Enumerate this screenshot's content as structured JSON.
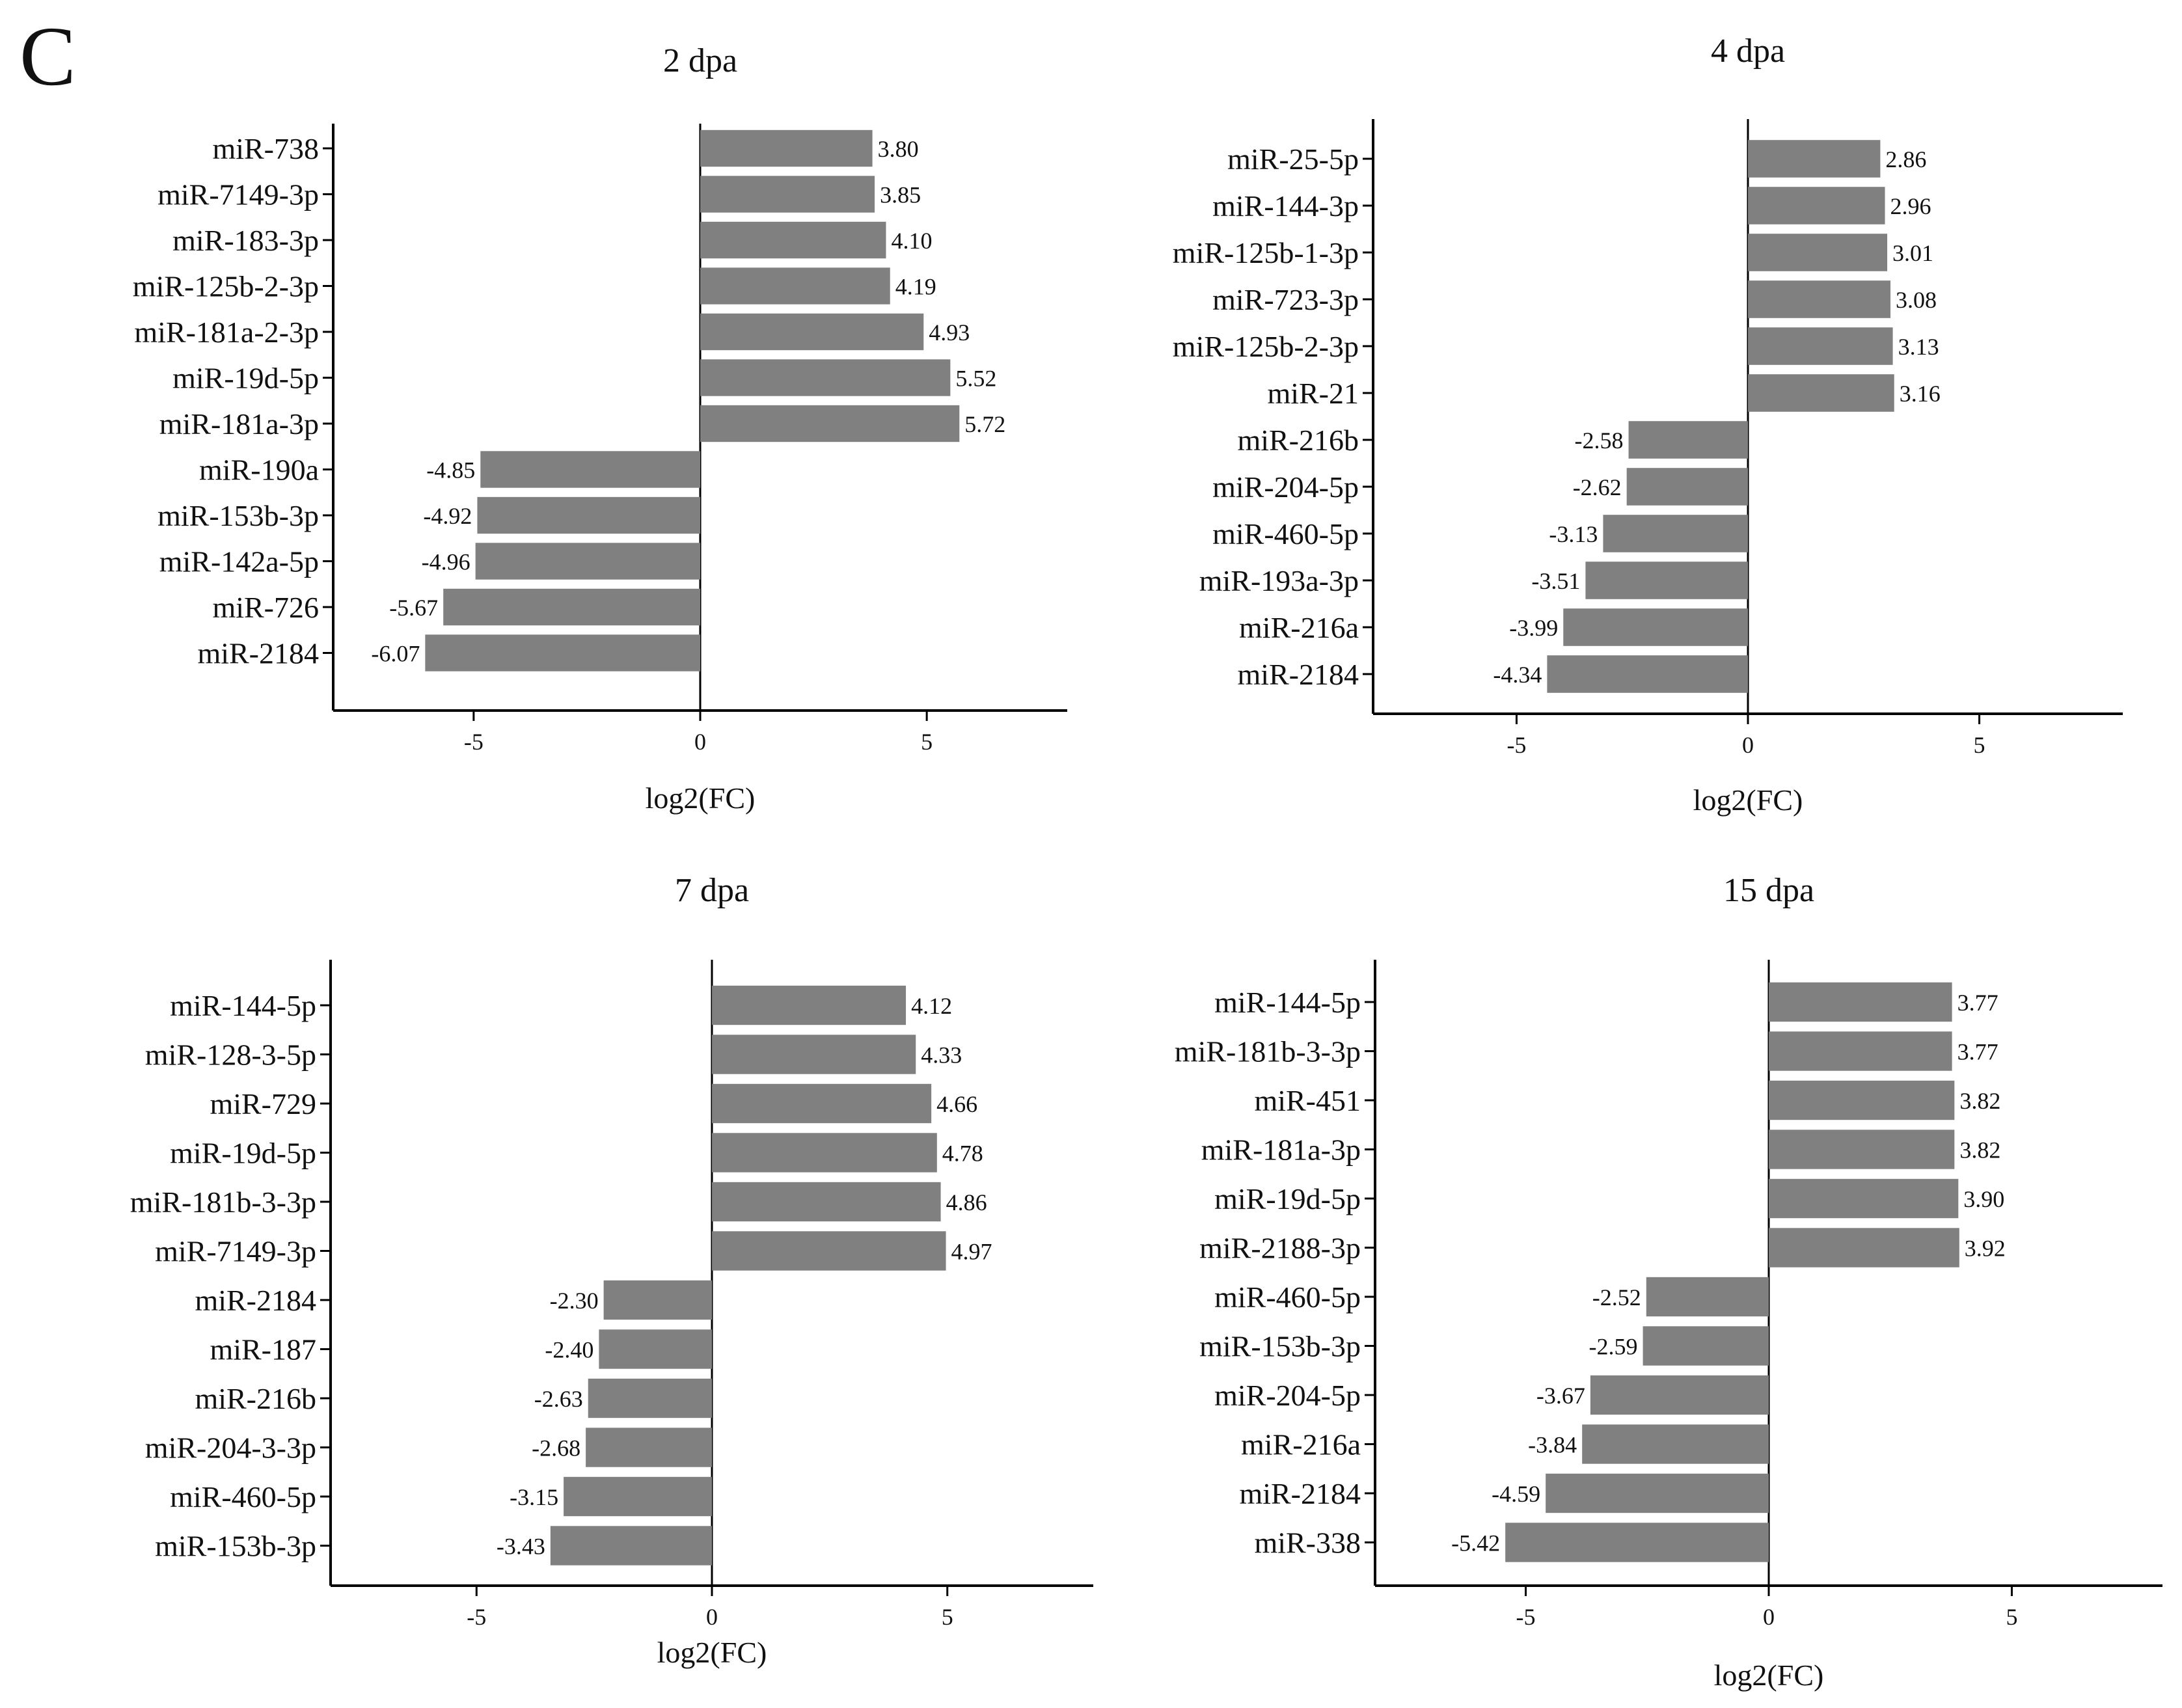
{
  "figure": {
    "panel_label": "C"
  },
  "style": {
    "bar_color": "#808080",
    "axis_color": "#000000",
    "text_color": "#111111"
  },
  "chart_data": [
    {
      "type": "bar",
      "orientation": "horizontal",
      "title": "2 dpa",
      "xlabel": "log2(FC)",
      "ylabel": "",
      "xlim": [
        -8.1,
        8.1
      ],
      "xticks": [
        -5,
        0,
        5
      ],
      "xtick_labels": [
        "-5",
        "0",
        "5"
      ],
      "categories": [
        "miR-738",
        "miR-7149-3p",
        "miR-183-3p",
        "miR-125b-2-3p",
        "miR-181a-2-3p",
        "miR-19d-5p",
        "miR-181a-3p",
        "miR-190a",
        "miR-153b-3p",
        "miR-142a-5p",
        "miR-726",
        "miR-2184"
      ],
      "values": [
        3.8,
        3.85,
        4.1,
        4.19,
        4.93,
        5.52,
        5.72,
        -4.85,
        -4.92,
        -4.96,
        -5.67,
        -6.07
      ],
      "value_labels": [
        "3.80",
        "3.85",
        "4.10",
        "4.19",
        "4.93",
        "5.52",
        "5.72",
        "-4.85",
        "-4.92",
        "-4.96",
        "-5.67",
        "-6.07"
      ]
    },
    {
      "type": "bar",
      "orientation": "horizontal",
      "title": "4 dpa",
      "xlabel": "log2(FC)",
      "ylabel": "",
      "xlim": [
        -8.1,
        8.1
      ],
      "xticks": [
        -5,
        0,
        5
      ],
      "xtick_labels": [
        "-5",
        "0",
        "5"
      ],
      "categories": [
        "miR-25-5p",
        "miR-144-3p",
        "miR-125b-1-3p",
        "miR-723-3p",
        "miR-125b-2-3p",
        "miR-21",
        "miR-216b",
        "miR-204-5p",
        "miR-460-5p",
        "miR-193a-3p",
        "miR-216a",
        "miR-2184"
      ],
      "values": [
        2.86,
        2.96,
        3.01,
        3.08,
        3.13,
        3.16,
        -2.58,
        -2.62,
        -3.13,
        -3.51,
        -3.99,
        -4.34
      ],
      "value_labels": [
        "2.86",
        "2.96",
        "3.01",
        "3.08",
        "3.13",
        "3.16",
        "-2.58",
        "-2.62",
        "-3.13",
        "-3.51",
        "-3.99",
        "-4.34"
      ]
    },
    {
      "type": "bar",
      "orientation": "horizontal",
      "title": "7 dpa",
      "xlabel": "log2(FC)",
      "ylabel": "",
      "xlim": [
        -8.1,
        8.1
      ],
      "xticks": [
        -5,
        0,
        5
      ],
      "xtick_labels": [
        "-5",
        "0",
        "5"
      ],
      "categories": [
        "miR-144-5p",
        "miR-128-3-5p",
        "miR-729",
        "miR-19d-5p",
        "miR-181b-3-3p",
        "miR-7149-3p",
        "miR-2184",
        "miR-187",
        "miR-216b",
        "miR-204-3-3p",
        "miR-460-5p",
        "miR-153b-3p"
      ],
      "values": [
        4.12,
        4.33,
        4.66,
        4.78,
        4.86,
        4.97,
        -2.3,
        -2.4,
        -2.63,
        -2.68,
        -3.15,
        -3.43
      ],
      "value_labels": [
        "4.12",
        "4.33",
        "4.66",
        "4.78",
        "4.86",
        "4.97",
        "-2.30",
        "-2.40",
        "-2.63",
        "-2.68",
        "-3.15",
        "-3.43"
      ]
    },
    {
      "type": "bar",
      "orientation": "horizontal",
      "title": "15 dpa",
      "xlabel": "log2(FC)",
      "ylabel": "",
      "xlim": [
        -8.1,
        8.1
      ],
      "xticks": [
        -5,
        0,
        5
      ],
      "xtick_labels": [
        "-5",
        "0",
        "5"
      ],
      "categories": [
        "miR-144-5p",
        "miR-181b-3-3p",
        "miR-451",
        "miR-181a-3p",
        "miR-19d-5p",
        "miR-2188-3p",
        "miR-460-5p",
        "miR-153b-3p",
        "miR-204-5p",
        "miR-216a",
        "miR-2184",
        "miR-338"
      ],
      "values": [
        3.77,
        3.77,
        3.82,
        3.82,
        3.9,
        3.92,
        -2.52,
        -2.59,
        -3.67,
        -3.84,
        -4.59,
        -5.42
      ],
      "value_labels": [
        "3.77",
        "3.77",
        "3.82",
        "3.82",
        "3.90",
        "3.92",
        "-2.52",
        "-2.59",
        "-3.67",
        "-3.84",
        "-4.59",
        "-5.42"
      ]
    }
  ]
}
